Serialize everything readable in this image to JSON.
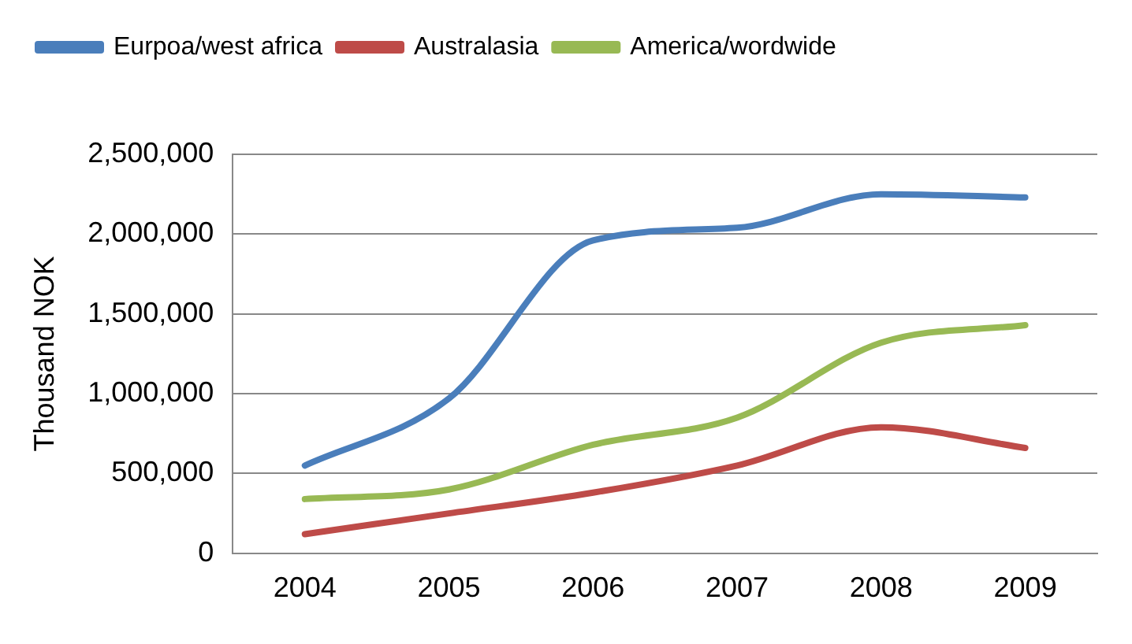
{
  "chart_data": {
    "type": "line",
    "ylabel": "Thousand NOK",
    "categories": [
      "2004",
      "2005",
      "2006",
      "2007",
      "2008",
      "2009"
    ],
    "series": [
      {
        "name": "Eurpoa/west africa",
        "color": "#4a7ebb",
        "values": [
          550000,
          970000,
          1960000,
          2040000,
          2250000,
          2230000
        ]
      },
      {
        "name": "Australasia",
        "color": "#be4b48",
        "values": [
          120000,
          250000,
          380000,
          550000,
          790000,
          660000
        ]
      },
      {
        "name": "America/wordwide",
        "color": "#98b954",
        "values": [
          340000,
          400000,
          680000,
          850000,
          1320000,
          1430000
        ]
      }
    ],
    "ylim": [
      0,
      2500000
    ],
    "yticks": [
      0,
      {
        "value": 500000,
        "label": "500,000"
      },
      {
        "value": 1000000,
        "label": "1,000,000"
      },
      {
        "value": 1500000,
        "label": "1,500,000"
      },
      {
        "value": 2000000,
        "label": "2,000,000"
      },
      {
        "value": 2500000,
        "label": "2,500,000"
      }
    ],
    "grid": "y",
    "legend": "top",
    "marker": "none",
    "line_style": "solid"
  }
}
